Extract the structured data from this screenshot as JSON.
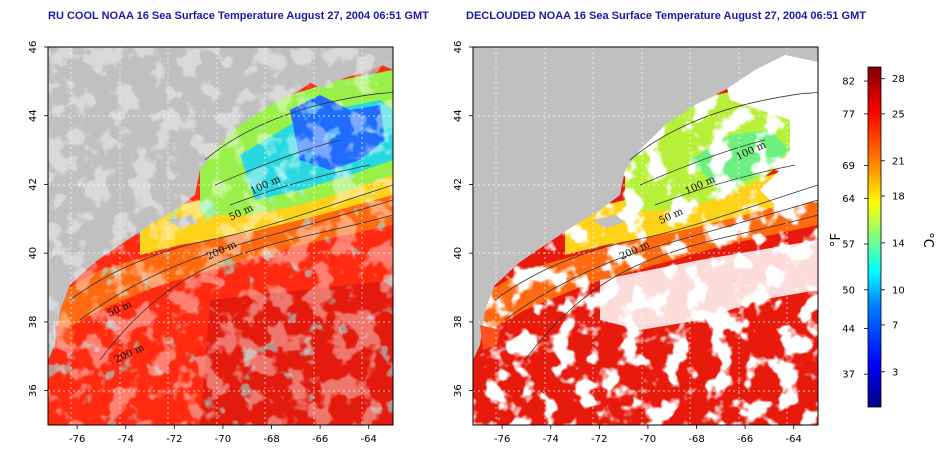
{
  "panels": [
    {
      "title": "RU COOL NOAA 16 Sea Surface Temperature August 27, 2004 06:51 GMT",
      "lon_range": [
        -77.2,
        -63.0
      ],
      "lat_range": [
        35.0,
        46.0
      ],
      "lon_ticks": [
        "-76",
        "-74",
        "-72",
        "-70",
        "-68",
        "-66",
        "-64"
      ],
      "lat_ticks": [
        "36",
        "38",
        "40",
        "42",
        "44",
        "46"
      ],
      "clouds_removed": false,
      "contour_labels": [
        {
          "text": "100 m",
          "lon": -68.2,
          "lat": 41.9
        },
        {
          "text": "50 m",
          "lon": -69.2,
          "lat": 41.1
        },
        {
          "text": "200 m",
          "lon": -70.0,
          "lat": 40.0
        },
        {
          "text": "50 m",
          "lon": -74.2,
          "lat": 38.3
        },
        {
          "text": "200 m",
          "lon": -73.8,
          "lat": 37.0
        }
      ]
    },
    {
      "title": "DECLOUDED NOAA 16 Sea Surface Temperature August 27, 2004 06:51 GMT",
      "lon_range": [
        -77.2,
        -63.0
      ],
      "lat_range": [
        35.0,
        46.0
      ],
      "lon_ticks": [
        "-76",
        "-74",
        "-72",
        "-70",
        "-68",
        "-66",
        "-64"
      ],
      "lat_ticks": [
        "36",
        "38",
        "40",
        "42",
        "44",
        "46"
      ],
      "clouds_removed": true,
      "contour_labels": [
        {
          "text": "100 m",
          "lon": -65.7,
          "lat": 42.9
        },
        {
          "text": "100 m",
          "lon": -67.8,
          "lat": 41.9
        },
        {
          "text": "50 m",
          "lon": -69.0,
          "lat": 41.0
        },
        {
          "text": "200 m",
          "lon": -70.5,
          "lat": 40.0
        }
      ]
    }
  ],
  "colorbar": {
    "fahrenheit_label": "°F",
    "celsius_label": "°C",
    "range_c": [
      0,
      29
    ],
    "fahrenheit_ticks": [
      "82",
      "77",
      "69",
      "64",
      "57",
      "50",
      "44",
      "37"
    ],
    "celsius_ticks": [
      "28",
      "25",
      "21",
      "18",
      "14",
      "10",
      "7",
      "3"
    ],
    "fahrenheit_values_c": [
      27.8,
      25.0,
      20.6,
      17.8,
      13.9,
      10.0,
      6.7,
      2.8
    ],
    "celsius_values": [
      28,
      25,
      21,
      18,
      14,
      10,
      7,
      3
    ]
  },
  "colors": {
    "land": "#c0c0c0",
    "cloud_mask": "#ffffff",
    "contour": "#333333",
    "grid": "#ffffff",
    "title": "#1a1aa6",
    "colormap": [
      "#00007f",
      "#0000ff",
      "#0080ff",
      "#00ffff",
      "#80ff80",
      "#ffff00",
      "#ff8000",
      "#ff0000",
      "#7f0000"
    ]
  }
}
